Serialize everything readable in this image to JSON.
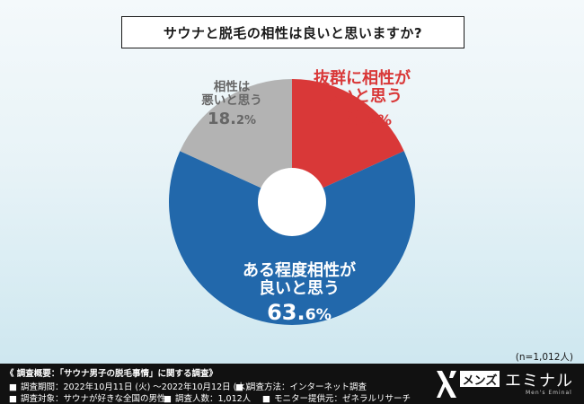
{
  "chart_data": {
    "type": "pie",
    "title": "サウナと脱毛の相性は良いと思いますか?",
    "donut": true,
    "slices": [
      {
        "label_lines": [
          "抜群に相性が",
          "良いと思う"
        ],
        "value": 18.2,
        "pct_main": "18.",
        "pct_dec": "2",
        "pct_unit": "%",
        "color": "#d93838"
      },
      {
        "label_lines": [
          "ある程度相性が",
          "良いと思う"
        ],
        "value": 63.6,
        "pct_main": "63.",
        "pct_dec": "6",
        "pct_unit": "%",
        "color": "#2268ab"
      },
      {
        "label_lines": [
          "相性は",
          "悪いと思う"
        ],
        "value": 18.2,
        "pct_main": "18.",
        "pct_dec": "2",
        "pct_unit": "%",
        "color": "#b3b3b3"
      }
    ],
    "sample_note": "(n=1,012人)"
  },
  "footer": {
    "heading": "《 調査概要：「サウナ男子の脱毛事情」に関する調査》",
    "row1_left": "調査期間：2022年10月11日 (火) 〜2022年10月12日 (水)",
    "row1_right": "調査方法：インターネット調査",
    "row2_a": "調査対象：サウナが好きな全国の男性",
    "row2_b": "調査人数：1,012人",
    "row2_c": "モニター提供元：ゼネラルリサーチ",
    "bullet": "■"
  },
  "logo": {
    "mens": "メンズ",
    "eminal": "エミナル",
    "sub": "Men's Eminal"
  }
}
